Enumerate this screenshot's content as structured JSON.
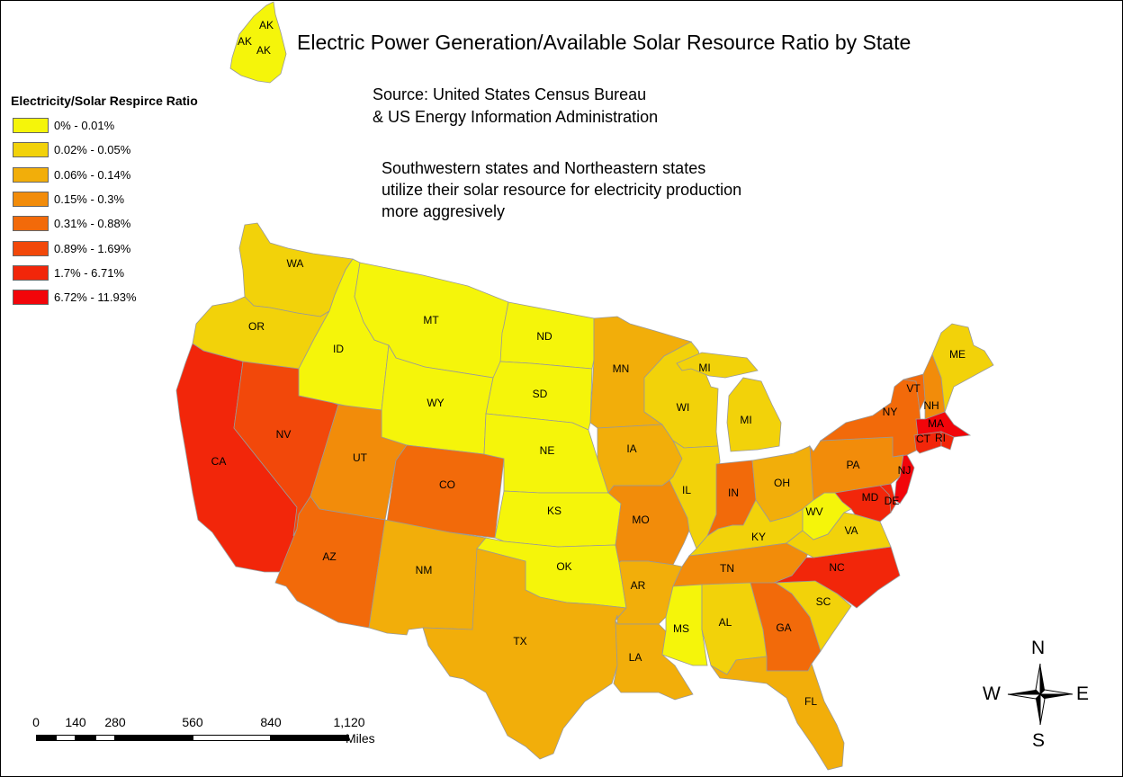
{
  "title": "Electric Power Generation/Available Solar Resource Ratio by State",
  "source_lines": [
    "Source: United States Census Bureau",
    "& US Energy Information Administration"
  ],
  "note_lines": [
    "Southwestern states and Northeastern states",
    "utilize their solar resource for electricity production",
    "more aggresively"
  ],
  "legend": {
    "title": "Electricity/Solar Respirce Ratio",
    "classes": [
      {
        "label": "0% - 0.01%",
        "color": "#f5f50a"
      },
      {
        "label": "0.02% - 0.05%",
        "color": "#f2d20a"
      },
      {
        "label": "0.06% - 0.14%",
        "color": "#f2ae0a"
      },
      {
        "label": "0.15% - 0.3%",
        "color": "#f28c0a"
      },
      {
        "label": "0.31% - 0.88%",
        "color": "#f26a0a"
      },
      {
        "label": "0.89% - 1.69%",
        "color": "#f2480a"
      },
      {
        "label": "1.7% - 6.71%",
        "color": "#f2260a"
      },
      {
        "label": "6.72% - 11.93%",
        "color": "#f2050a"
      }
    ]
  },
  "states": [
    {
      "abbr": "AK",
      "class": 0
    },
    {
      "abbr": "WA",
      "class": 1
    },
    {
      "abbr": "OR",
      "class": 1
    },
    {
      "abbr": "CA",
      "class": 6
    },
    {
      "abbr": "ID",
      "class": 0
    },
    {
      "abbr": "NV",
      "class": 5
    },
    {
      "abbr": "MT",
      "class": 0
    },
    {
      "abbr": "WY",
      "class": 0
    },
    {
      "abbr": "UT",
      "class": 3
    },
    {
      "abbr": "CO",
      "class": 4
    },
    {
      "abbr": "AZ",
      "class": 4
    },
    {
      "abbr": "NM",
      "class": 2
    },
    {
      "abbr": "ND",
      "class": 0
    },
    {
      "abbr": "SD",
      "class": 0
    },
    {
      "abbr": "NE",
      "class": 0
    },
    {
      "abbr": "KS",
      "class": 0
    },
    {
      "abbr": "OK",
      "class": 0
    },
    {
      "abbr": "TX",
      "class": 2
    },
    {
      "abbr": "MN",
      "class": 2
    },
    {
      "abbr": "IA",
      "class": 2
    },
    {
      "abbr": "MO",
      "class": 3
    },
    {
      "abbr": "AR",
      "class": 2
    },
    {
      "abbr": "LA",
      "class": 2
    },
    {
      "abbr": "WI",
      "class": 1
    },
    {
      "abbr": "IL",
      "class": 1
    },
    {
      "abbr": "MI",
      "class": 1
    },
    {
      "abbr": "IN",
      "class": 4
    },
    {
      "abbr": "OH",
      "class": 2
    },
    {
      "abbr": "KY",
      "class": 1
    },
    {
      "abbr": "TN",
      "class": 3
    },
    {
      "abbr": "MS",
      "class": 0
    },
    {
      "abbr": "AL",
      "class": 1
    },
    {
      "abbr": "GA",
      "class": 4
    },
    {
      "abbr": "FL",
      "class": 2
    },
    {
      "abbr": "SC",
      "class": 1
    },
    {
      "abbr": "NC",
      "class": 6
    },
    {
      "abbr": "VA",
      "class": 1
    },
    {
      "abbr": "WV",
      "class": 0
    },
    {
      "abbr": "PA",
      "class": 3
    },
    {
      "abbr": "NY",
      "class": 4
    },
    {
      "abbr": "VT",
      "class": 4
    },
    {
      "abbr": "NH",
      "class": 3
    },
    {
      "abbr": "ME",
      "class": 1
    },
    {
      "abbr": "MA",
      "class": 7
    },
    {
      "abbr": "CT",
      "class": 6
    },
    {
      "abbr": "RI",
      "class": 6
    },
    {
      "abbr": "NJ",
      "class": 7
    },
    {
      "abbr": "DE",
      "class": 6
    },
    {
      "abbr": "MD",
      "class": 6
    }
  ],
  "scale_bar": {
    "ticks": [
      "0",
      "140",
      "280",
      "560",
      "840",
      "1,120"
    ],
    "units": "Miles"
  },
  "compass": {
    "north": "N",
    "south": "S",
    "east": "E",
    "west": "W"
  }
}
